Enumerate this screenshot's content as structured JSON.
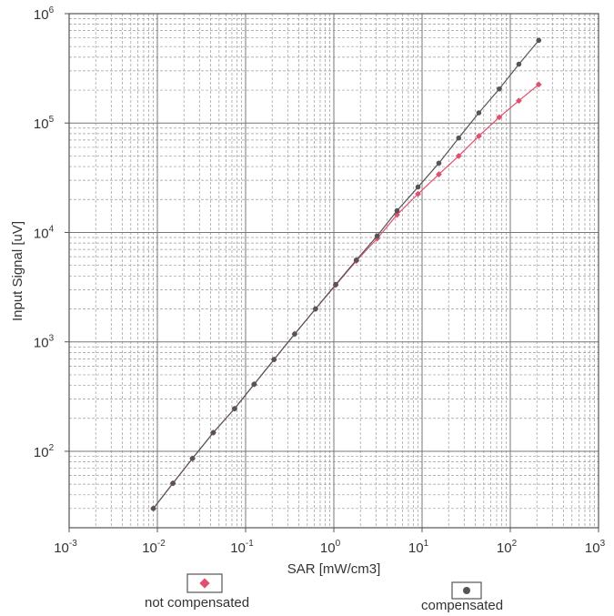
{
  "chart_data": {
    "type": "line",
    "xlabel": "SAR [mW/cm3]",
    "ylabel": "Input Signal [uV]",
    "x_scale": "log",
    "y_scale": "log",
    "xlim": [
      0.001,
      1000
    ],
    "ylim": [
      20,
      1000000
    ],
    "grid": true,
    "x_ticks": [
      {
        "base": "10",
        "exp": "-3"
      },
      {
        "base": "10",
        "exp": "-2"
      },
      {
        "base": "10",
        "exp": "-1"
      },
      {
        "base": "10",
        "exp": "0"
      },
      {
        "base": "10",
        "exp": "1"
      },
      {
        "base": "10",
        "exp": "2"
      },
      {
        "base": "10",
        "exp": "3"
      }
    ],
    "y_ticks": [
      {
        "base": "10",
        "exp": "2"
      },
      {
        "base": "10",
        "exp": "3"
      },
      {
        "base": "10",
        "exp": "4"
      },
      {
        "base": "10",
        "exp": "5"
      },
      {
        "base": "10",
        "exp": "6"
      }
    ],
    "legend_placement": "bottom",
    "series": [
      {
        "name": "not compensated",
        "color": "#e0506e",
        "marker": "diamond",
        "x": [
          0.009,
          0.015,
          0.025,
          0.043,
          0.075,
          0.125,
          0.21,
          0.36,
          0.62,
          1.05,
          1.8,
          3.1,
          5.2,
          9.0,
          15.5,
          26,
          44,
          75,
          125,
          210
        ],
        "y": [
          30,
          51,
          86,
          148,
          245,
          410,
          690,
          1180,
          2000,
          3300,
          5500,
          8800,
          14500,
          22500,
          34000,
          50000,
          76000,
          113000,
          160000,
          225000
        ]
      },
      {
        "name": "compensated",
        "color": "#555555",
        "marker": "circle",
        "x": [
          0.009,
          0.015,
          0.025,
          0.043,
          0.075,
          0.125,
          0.21,
          0.36,
          0.62,
          1.05,
          1.8,
          3.1,
          5.2,
          9.0,
          15.5,
          26,
          44,
          75,
          125,
          210
        ],
        "y": [
          30,
          51,
          86,
          148,
          245,
          410,
          690,
          1180,
          2000,
          3350,
          5600,
          9300,
          15800,
          26000,
          43000,
          73000,
          124000,
          205000,
          345000,
          570000
        ]
      }
    ]
  },
  "legend": {
    "not_compensated": "not compensated",
    "compensated": "compensated"
  }
}
